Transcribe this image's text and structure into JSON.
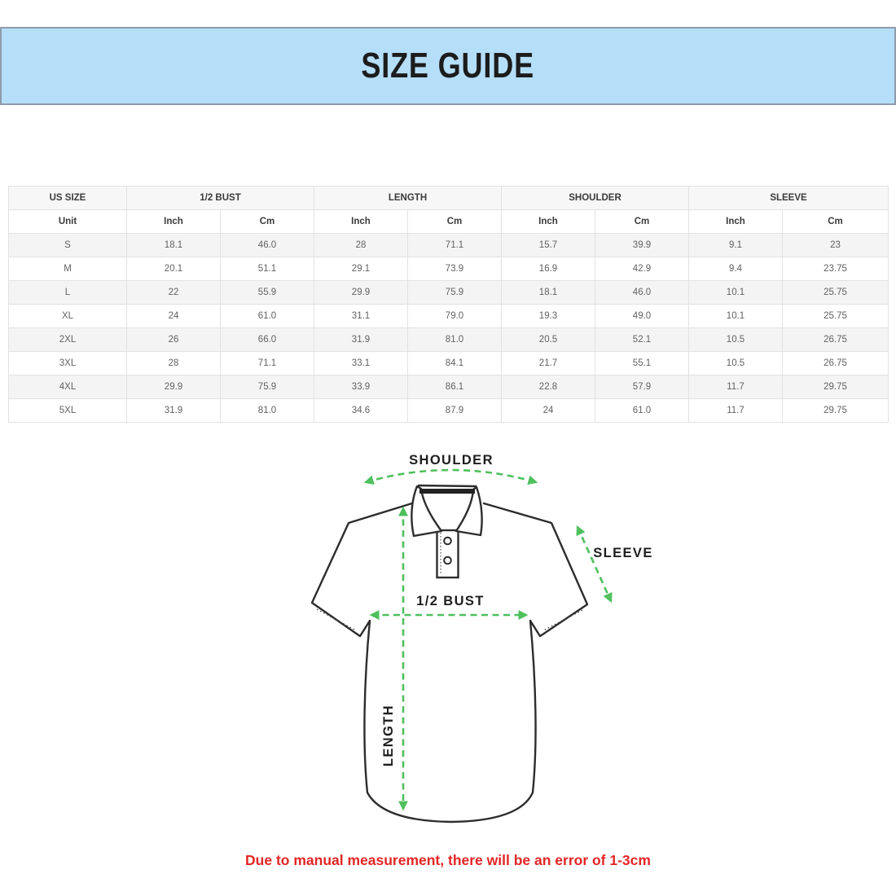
{
  "banner": {
    "title": "SIZE GUIDE",
    "background_color": "#b5def9",
    "border_color": "#8e9ba9",
    "title_color": "#1c1c1c"
  },
  "table": {
    "groups": [
      {
        "label": "US SIZE"
      },
      {
        "label": "1/2 BUST"
      },
      {
        "label": "LENGTH"
      },
      {
        "label": "SHOULDER"
      },
      {
        "label": "SLEEVE"
      }
    ],
    "units": [
      "Unit",
      "Inch",
      "Cm",
      "Inch",
      "Cm",
      "Inch",
      "Cm",
      "Inch",
      "Cm"
    ],
    "rows": [
      [
        "S",
        "18.1",
        "46.0",
        "28",
        "71.1",
        "15.7",
        "39.9",
        "9.1",
        "23"
      ],
      [
        "M",
        "20.1",
        "51.1",
        "29.1",
        "73.9",
        "16.9",
        "42.9",
        "9.4",
        "23.75"
      ],
      [
        "L",
        "22",
        "55.9",
        "29.9",
        "75.9",
        "18.1",
        "46.0",
        "10.1",
        "25.75"
      ],
      [
        "XL",
        "24",
        "61.0",
        "31.1",
        "79.0",
        "19.3",
        "49.0",
        "10.1",
        "25.75"
      ],
      [
        "2XL",
        "26",
        "66.0",
        "31.9",
        "81.0",
        "20.5",
        "52.1",
        "10.5",
        "26.75"
      ],
      [
        "3XL",
        "28",
        "71.1",
        "33.1",
        "84.1",
        "21.7",
        "55.1",
        "10.5",
        "26.75"
      ],
      [
        "4XL",
        "29.9",
        "75.9",
        "33.9",
        "86.1",
        "22.8",
        "57.9",
        "11.7",
        "29.75"
      ],
      [
        "5XL",
        "31.9",
        "81.0",
        "34.6",
        "87.9",
        "24",
        "61.0",
        "11.7",
        "29.75"
      ]
    ],
    "stripe_color": "#f4f4f4",
    "border_color": "#e2e2e2"
  },
  "diagram": {
    "labels": {
      "shoulder": "SHOULDER",
      "sleeve": "SLEEVE",
      "bust": "1/2 BUST",
      "length": "LENGTH"
    },
    "arrow_color": "#4fc05c",
    "outline_color": "#2d2d2d"
  },
  "footnote": {
    "text": "Due to manual measurement, there will be an error of 1-3cm",
    "color": "#e32525"
  }
}
